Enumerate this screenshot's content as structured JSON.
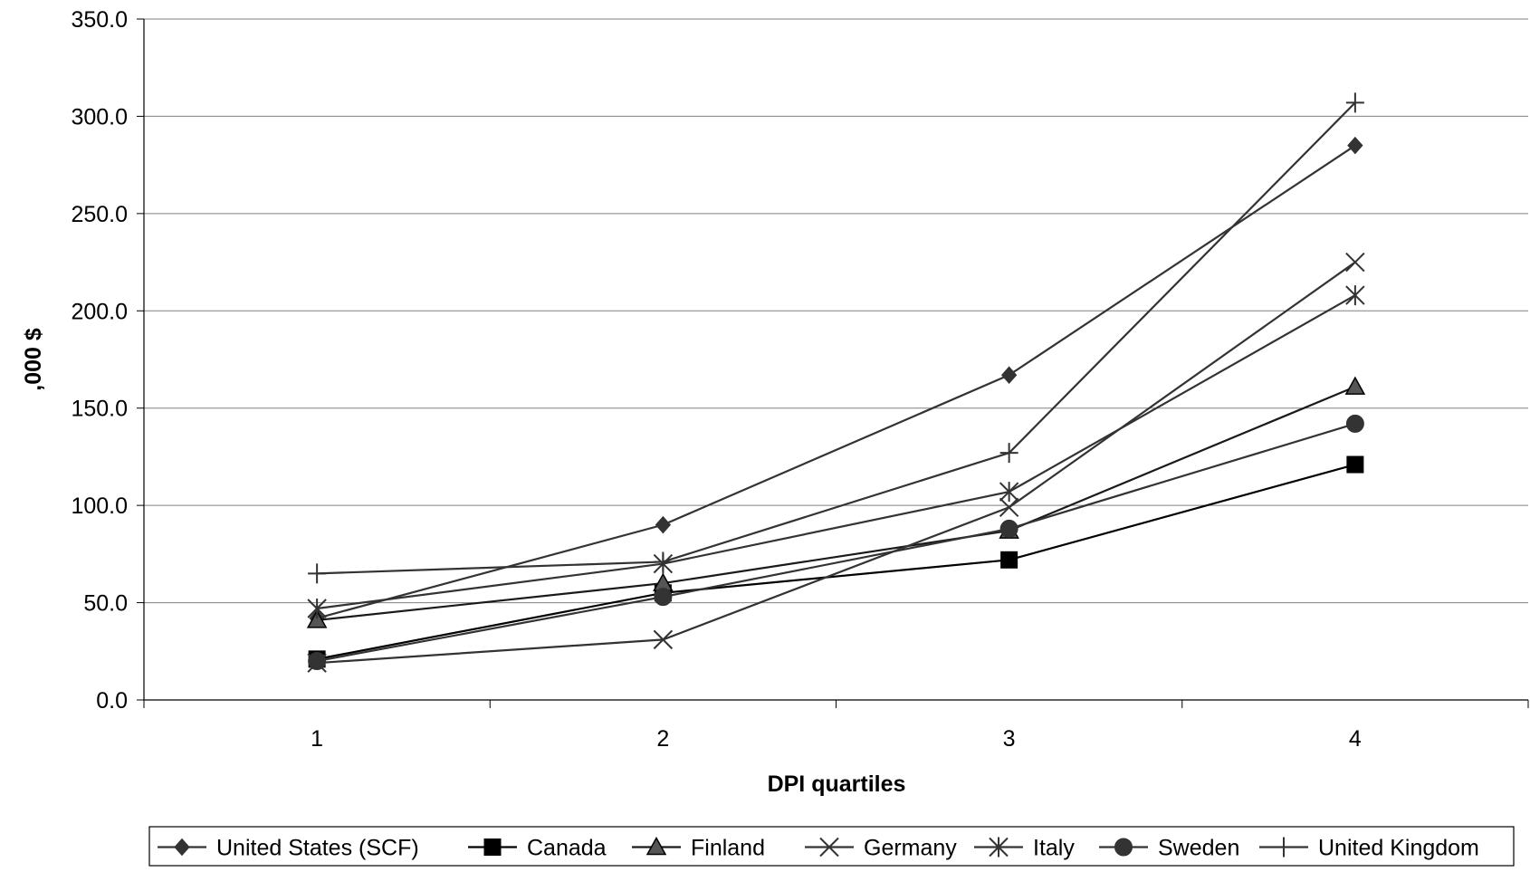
{
  "chart_data": {
    "type": "line",
    "x": [
      1,
      2,
      3,
      4
    ],
    "xlabel": "DPI quartiles",
    "ylabel": ",000 $",
    "ylim": [
      0,
      350
    ],
    "yticks": [
      "0.0",
      "50.0",
      "100.0",
      "150.0",
      "200.0",
      "250.0",
      "300.0",
      "350.0"
    ],
    "xticks": [
      "1",
      "2",
      "3",
      "4"
    ],
    "grid": "horizontal",
    "legend_position": "bottom",
    "series": [
      {
        "name": "United States (SCF)",
        "marker": "diamond",
        "color": "#333333",
        "values": [
          42,
          90,
          167,
          285
        ]
      },
      {
        "name": "Canada",
        "marker": "square",
        "color": "#000000",
        "values": [
          21,
          55,
          72,
          121
        ]
      },
      {
        "name": "Finland",
        "marker": "triangle",
        "color": "#1a1a1a",
        "values": [
          41,
          60,
          87,
          161
        ]
      },
      {
        "name": "Germany",
        "marker": "x",
        "color": "#333333",
        "values": [
          19,
          31,
          99,
          225
        ]
      },
      {
        "name": "Italy",
        "marker": "star",
        "color": "#333333",
        "values": [
          47,
          70,
          107,
          208
        ]
      },
      {
        "name": "Sweden",
        "marker": "circle",
        "color": "#333333",
        "values": [
          20,
          53,
          88,
          142
        ]
      },
      {
        "name": "United Kingdom",
        "marker": "plus",
        "color": "#333333",
        "values": [
          65,
          71,
          127,
          307
        ]
      }
    ]
  }
}
